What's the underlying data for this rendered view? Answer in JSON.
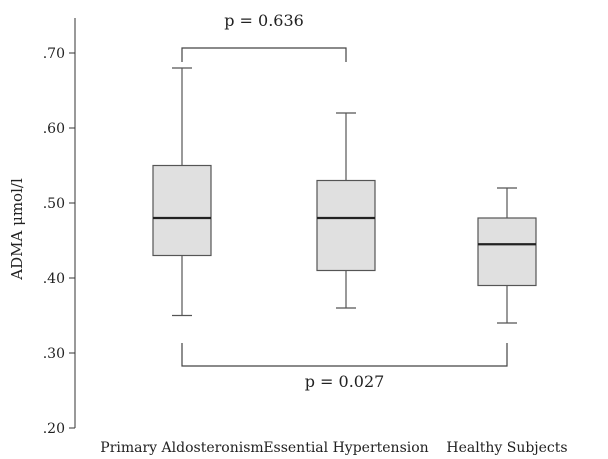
{
  "chart_data": {
    "type": "box",
    "ylabel": "ADMA μmol/l",
    "ylim": [
      0.2,
      0.75
    ],
    "yticks": [
      0.2,
      0.3,
      0.4,
      0.5,
      0.6,
      0.7
    ],
    "ytick_labels": [
      ".20",
      ".30",
      ".40",
      ".50",
      ".60",
      ".70"
    ],
    "categories": [
      "Primary Aldosteronism",
      "Essential Hypertension",
      "Healthy Subjects"
    ],
    "boxes": [
      {
        "category": "Primary Aldosteronism",
        "min": 0.35,
        "q1": 0.43,
        "median": 0.48,
        "q3": 0.55,
        "max": 0.68
      },
      {
        "category": "Essential Hypertension",
        "min": 0.36,
        "q1": 0.41,
        "median": 0.48,
        "q3": 0.53,
        "max": 0.62
      },
      {
        "category": "Healthy Subjects",
        "min": 0.34,
        "q1": 0.39,
        "median": 0.445,
        "q3": 0.48,
        "max": 0.52
      }
    ],
    "box_color": "#e0e0e0",
    "annotations": [
      {
        "text": "p = 0.636",
        "from": 0,
        "to": 1,
        "position": "top"
      },
      {
        "text": "p = 0.027",
        "from": 0,
        "to": 2,
        "position": "bottom"
      }
    ]
  }
}
